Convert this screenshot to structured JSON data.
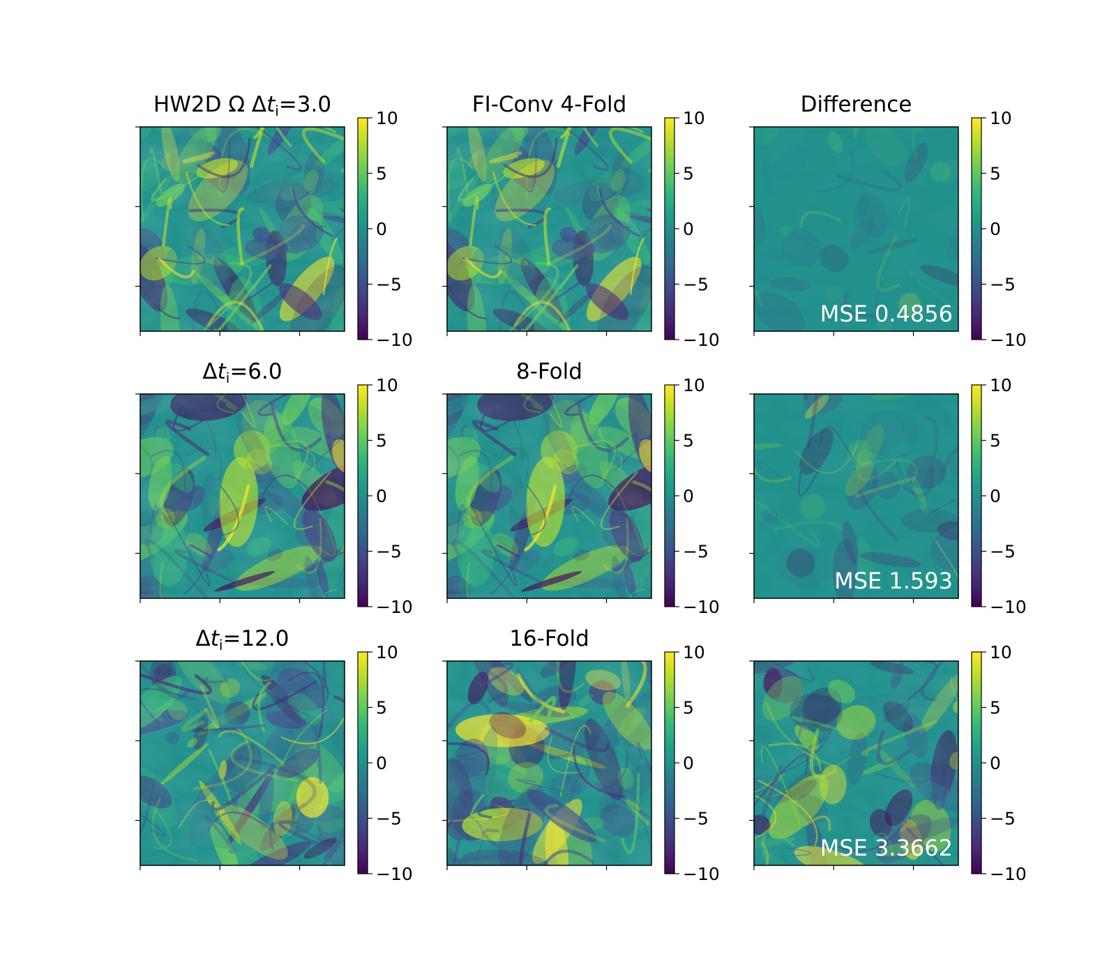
{
  "figure": {
    "colormap": "viridis",
    "colormap_stops": [
      "#440154",
      "#482878",
      "#3e4989",
      "#31688e",
      "#26828e",
      "#1f9e89",
      "#35b779",
      "#6ece58",
      "#b5de2b",
      "#fde725"
    ],
    "panel_background": "#21918c",
    "annotation_color": "#ffffff"
  },
  "chart_data": [
    {
      "type": "heatmap",
      "row": 0,
      "col": 0,
      "title_main": "HW2D Ω Δ",
      "title_var": "t",
      "title_sub": "i",
      "title_rest": "=3.0",
      "clim": [
        -10,
        10
      ],
      "colorbar_ticks": [
        "10",
        "5",
        "0",
        "−5",
        "−10"
      ],
      "annotation": "",
      "amplitude": 1.0,
      "seed": 11
    },
    {
      "type": "heatmap",
      "row": 0,
      "col": 1,
      "title_main": "FI-Conv 4-Fold",
      "title_var": "",
      "title_sub": "",
      "title_rest": "",
      "clim": [
        -10,
        10
      ],
      "colorbar_ticks": [
        "10",
        "5",
        "0",
        "−5",
        "−10"
      ],
      "annotation": "",
      "amplitude": 1.0,
      "seed": 11
    },
    {
      "type": "heatmap",
      "row": 0,
      "col": 2,
      "title_main": "Difference",
      "title_var": "",
      "title_sub": "",
      "title_rest": "",
      "clim": [
        -10,
        10
      ],
      "colorbar_ticks": [
        "10",
        "5",
        "0",
        "−5",
        "−10"
      ],
      "annotation": "MSE 0.4856",
      "amplitude": 0.12,
      "seed": 41
    },
    {
      "type": "heatmap",
      "row": 1,
      "col": 0,
      "title_main": "Δ",
      "title_var": "t",
      "title_sub": "i",
      "title_rest": "=6.0",
      "clim": [
        -10,
        10
      ],
      "colorbar_ticks": [
        "10",
        "5",
        "0",
        "−5",
        "−10"
      ],
      "annotation": "",
      "amplitude": 1.0,
      "seed": 23
    },
    {
      "type": "heatmap",
      "row": 1,
      "col": 1,
      "title_main": "8-Fold",
      "title_var": "",
      "title_sub": "",
      "title_rest": "",
      "clim": [
        -10,
        10
      ],
      "colorbar_ticks": [
        "10",
        "5",
        "0",
        "−5",
        "−10"
      ],
      "annotation": "",
      "amplitude": 1.0,
      "seed": 23
    },
    {
      "type": "heatmap",
      "row": 1,
      "col": 2,
      "title_main": "",
      "title_var": "",
      "title_sub": "",
      "title_rest": "",
      "clim": [
        -10,
        10
      ],
      "colorbar_ticks": [
        "10",
        "5",
        "0",
        "−5",
        "−10"
      ],
      "annotation": "MSE 1.593",
      "amplitude": 0.3,
      "seed": 53
    },
    {
      "type": "heatmap",
      "row": 2,
      "col": 0,
      "title_main": "Δ",
      "title_var": "t",
      "title_sub": "i",
      "title_rest": "=12.0",
      "clim": [
        -10,
        10
      ],
      "colorbar_ticks": [
        "10",
        "5",
        "0",
        "−5",
        "−10"
      ],
      "annotation": "",
      "amplitude": 1.0,
      "seed": 31
    },
    {
      "type": "heatmap",
      "row": 2,
      "col": 1,
      "title_main": "16-Fold",
      "title_var": "",
      "title_sub": "",
      "title_rest": "",
      "clim": [
        -10,
        10
      ],
      "colorbar_ticks": [
        "10",
        "5",
        "0",
        "−5",
        "−10"
      ],
      "annotation": "",
      "amplitude": 1.0,
      "seed": 37
    },
    {
      "type": "heatmap",
      "row": 2,
      "col": 2,
      "title_main": "",
      "title_var": "",
      "title_sub": "",
      "title_rest": "",
      "clim": [
        -10,
        10
      ],
      "colorbar_ticks": [
        "10",
        "5",
        "0",
        "−5",
        "−10"
      ],
      "annotation": "MSE 3.3662",
      "amplitude": 0.7,
      "seed": 61
    }
  ]
}
